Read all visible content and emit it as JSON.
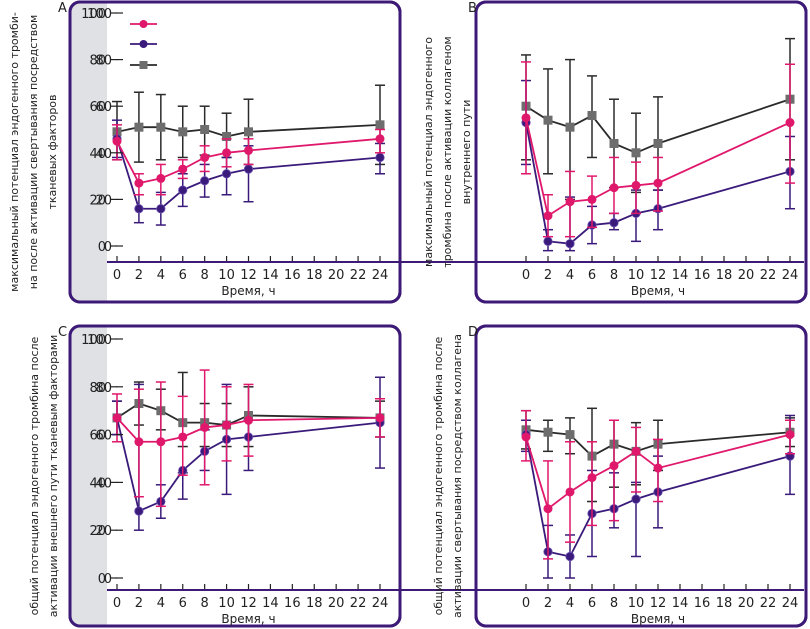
{
  "figure": {
    "colors": {
      "series_pink": "#e0186c",
      "series_purple": "#3a1a7a",
      "series_grey": "#6d6d6d",
      "error_grey": "#2a2a2a",
      "panel_border": "#3d1a78",
      "axis_band": "#dfe1e5"
    }
  },
  "chart_data": [
    {
      "type": "line",
      "panel": "A",
      "xlabel": "Время, ч",
      "ylabel_lines": [
        "максимальный потенциал эндогенного тромби-",
        "на после активации свертывания посредством",
        "тканевых факторов"
      ],
      "x_ticks": [
        0,
        2,
        4,
        6,
        8,
        10,
        12,
        14,
        16,
        18,
        20,
        22,
        24
      ],
      "y_ticks": [
        0,
        20,
        40,
        60,
        80,
        100
      ],
      "xlim": [
        0,
        25
      ],
      "ylim": [
        -6,
        100
      ],
      "legend": "top-left",
      "legend_labels": [
        "",
        "",
        ""
      ],
      "x": [
        0,
        2,
        4,
        6,
        8,
        10,
        12,
        24
      ],
      "series": [
        {
          "name": "pink",
          "marker": "circle",
          "values": [
            45,
            27,
            29,
            33,
            38,
            40,
            41,
            46
          ],
          "err_low": [
            37,
            22,
            22,
            29,
            32,
            34,
            35,
            40
          ],
          "err_high": [
            52,
            31,
            35,
            37,
            43,
            46,
            46,
            50
          ]
        },
        {
          "name": "purple",
          "marker": "diamond",
          "values": [
            46,
            16,
            16,
            24,
            28,
            31,
            33,
            38
          ],
          "err_low": [
            38,
            10,
            9,
            17,
            21,
            22,
            19,
            31
          ],
          "err_high": [
            54,
            22,
            23,
            31,
            35,
            38,
            43,
            44
          ]
        },
        {
          "name": "grey",
          "marker": "square",
          "values": [
            49,
            51,
            51,
            49,
            50,
            47,
            49,
            52
          ],
          "err_low": [
            37,
            36,
            37,
            38,
            39,
            38,
            35,
            35
          ],
          "err_high": [
            62,
            66,
            65,
            60,
            60,
            57,
            63,
            69
          ]
        }
      ]
    },
    {
      "type": "line",
      "panel": "B",
      "xlabel": "Время, ч",
      "ylabel_lines": [
        "максимальный потенциал эндогенного",
        "тромбина после активации коллагеном",
        "внутреннего пути"
      ],
      "x_ticks": [
        0,
        2,
        4,
        6,
        8,
        10,
        12,
        14,
        16,
        18,
        20,
        22,
        24
      ],
      "y_ticks": [
        0,
        20,
        40,
        60,
        80,
        100
      ],
      "xlim": [
        0,
        25
      ],
      "ylim": [
        -6,
        100
      ],
      "x": [
        0,
        2,
        4,
        6,
        8,
        10,
        12,
        24
      ],
      "series": [
        {
          "name": "pink",
          "marker": "circle",
          "values": [
            55,
            13,
            19,
            20,
            25,
            26,
            27,
            53
          ],
          "err_low": [
            31,
            4,
            4,
            8,
            14,
            14,
            15,
            27
          ],
          "err_high": [
            79,
            22,
            32,
            30,
            38,
            36,
            38,
            78
          ]
        },
        {
          "name": "purple",
          "marker": "diamond",
          "values": [
            53,
            2,
            1,
            9,
            10,
            14,
            16,
            32
          ],
          "err_low": [
            35,
            -2,
            -2,
            1,
            7,
            2,
            7,
            16
          ],
          "err_high": [
            71,
            7,
            21,
            17,
            14,
            24,
            24,
            47
          ]
        },
        {
          "name": "grey",
          "marker": "square",
          "values": [
            60,
            54,
            51,
            56,
            44,
            40,
            44,
            63
          ],
          "err_low": [
            37,
            31,
            20,
            38,
            25,
            23,
            24,
            37
          ],
          "err_high": [
            82,
            76,
            80,
            73,
            63,
            57,
            64,
            89
          ]
        }
      ]
    },
    {
      "type": "line",
      "panel": "C",
      "xlabel": "Время, ч",
      "ylabel_lines": [
        "общий потенциал эндогенного тромбина после",
        "активации внешнего пути тканевым факторами"
      ],
      "x_ticks": [
        0,
        2,
        4,
        6,
        8,
        10,
        12,
        14,
        16,
        18,
        20,
        22,
        24
      ],
      "y_ticks": [
        0,
        20,
        40,
        60,
        80,
        100
      ],
      "xlim": [
        0,
        25
      ],
      "ylim": [
        -6,
        100
      ],
      "x": [
        0,
        2,
        4,
        6,
        8,
        10,
        12,
        24
      ],
      "series": [
        {
          "name": "pink",
          "marker": "circle",
          "values": [
            67,
            57,
            57,
            59,
            63,
            64,
            66,
            67
          ],
          "err_low": [
            57,
            34,
            30,
            43,
            39,
            49,
            51,
            59
          ],
          "err_high": [
            77,
            79,
            82,
            76,
            87,
            80,
            81,
            75
          ]
        },
        {
          "name": "purple",
          "marker": "diamond",
          "values": [
            67,
            28,
            32,
            45,
            53,
            58,
            59,
            65
          ],
          "err_low": [
            60,
            20,
            25,
            33,
            45,
            35,
            45,
            46
          ],
          "err_high": [
            74,
            81,
            39,
            44,
            62,
            81,
            66,
            84
          ]
        },
        {
          "name": "grey",
          "marker": "square",
          "values": [
            67,
            73,
            70,
            65,
            65,
            64,
            68,
            67
          ],
          "err_low": [
            60,
            64,
            62,
            55,
            55,
            55,
            55,
            59
          ],
          "err_high": [
            74,
            82,
            79,
            86,
            73,
            73,
            80,
            74
          ]
        }
      ]
    },
    {
      "type": "line",
      "panel": "D",
      "xlabel": "Время, ч",
      "ylabel_lines": [
        "общий потенциал эндогенного тромбина после",
        "активации свертывания посредством коллагена"
      ],
      "x_ticks": [
        0,
        2,
        4,
        6,
        8,
        10,
        12,
        14,
        16,
        18,
        20,
        22,
        24
      ],
      "y_ticks": [
        0,
        20,
        40,
        60,
        80,
        100
      ],
      "xlim": [
        0,
        25
      ],
      "ylim": [
        -6,
        100
      ],
      "x": [
        0,
        2,
        4,
        6,
        8,
        10,
        12,
        24
      ],
      "series": [
        {
          "name": "pink",
          "marker": "circle",
          "values": [
            59,
            29,
            36,
            42,
            47,
            53,
            46,
            60
          ],
          "err_low": [
            49,
            8,
            15,
            22,
            24,
            36,
            32,
            52
          ],
          "err_high": [
            70,
            49,
            57,
            57,
            66,
            63,
            58,
            66
          ]
        },
        {
          "name": "purple",
          "marker": "diamond",
          "values": [
            60,
            11,
            9,
            27,
            29,
            33,
            36,
            51
          ],
          "err_low": [
            53,
            0,
            0,
            9,
            21,
            9,
            21,
            35
          ],
          "err_high": [
            66,
            22,
            18,
            45,
            44,
            40,
            51,
            68
          ]
        },
        {
          "name": "grey",
          "marker": "square",
          "values": [
            62,
            61,
            60,
            51,
            56,
            53,
            56,
            61
          ],
          "err_low": [
            54,
            53,
            52,
            32,
            38,
            39,
            45,
            55
          ],
          "err_high": [
            70,
            66,
            67,
            71,
            66,
            65,
            66,
            67
          ]
        }
      ]
    }
  ]
}
